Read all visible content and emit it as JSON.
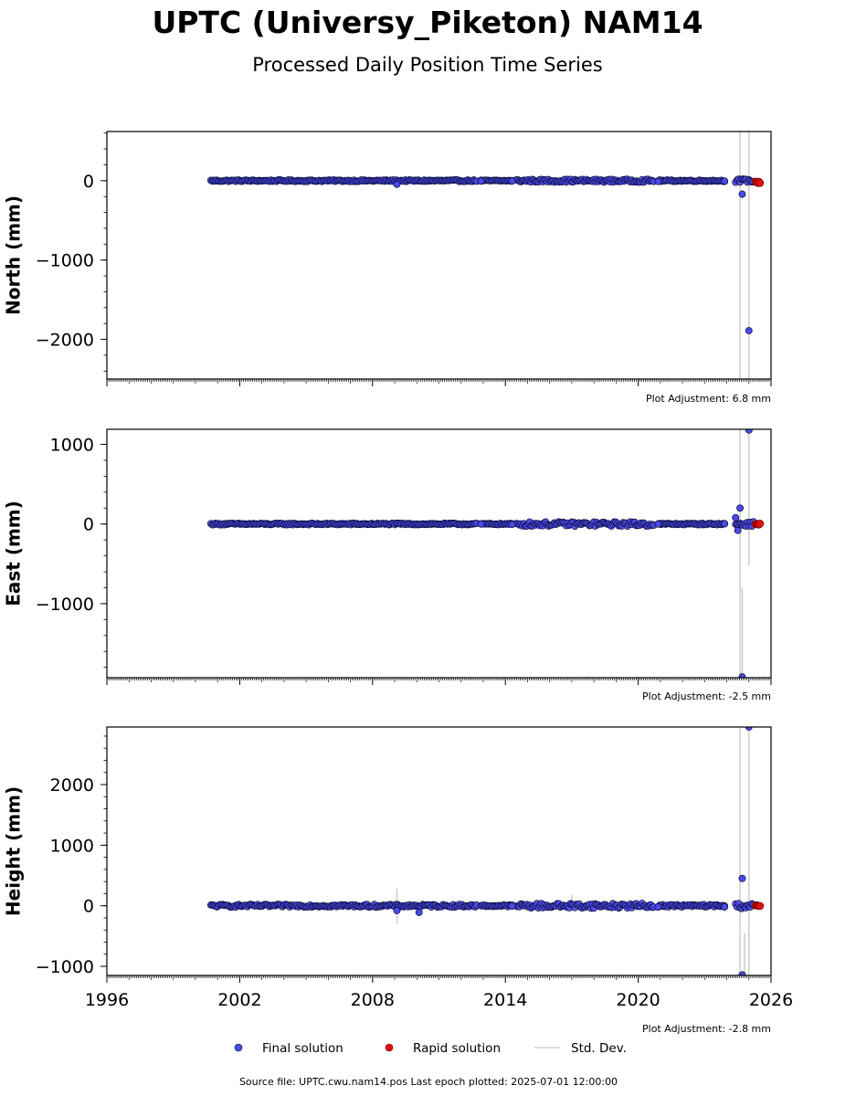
{
  "title": "UPTC (Universy_Piketon) NAM14",
  "subtitle": "Processed Daily Position Time Series",
  "colors": {
    "final": "#4a4ae8",
    "final_edge": "#0b0b3a",
    "rapid": "#e01010",
    "stddev": "#cfcfcf"
  },
  "legend": {
    "final": "Final solution",
    "rapid": "Rapid solution",
    "stddev": "Std. Dev."
  },
  "footer": "Source file: UPTC.cwu.nam14.pos  Last epoch plotted: 2025-07-01 12:00:00",
  "chart_data": [
    {
      "type": "scatter",
      "component": "north",
      "ylabel": "North (mm)",
      "adjustment": "Plot Adjustment: 6.8 mm",
      "xlim": [
        1996,
        2026
      ],
      "ylim": [
        -2500,
        620
      ],
      "yticks": [
        0,
        -1000,
        -2000
      ],
      "ytick_labels": [
        "0",
        "−1000",
        "−2000"
      ],
      "xticks": [
        1996,
        2002,
        2008,
        2014,
        2020,
        2026
      ],
      "xtick_labels": [],
      "final_segments": [
        {
          "start": 2000.7,
          "end": 2012.7,
          "spread": 10
        },
        {
          "start": 2012.9,
          "end": 2014.3,
          "spread": 8
        },
        {
          "start": 2014.5,
          "end": 2020.7,
          "spread": 18
        },
        {
          "start": 2020.9,
          "end": 2023.9,
          "spread": 9
        },
        {
          "start": 2024.4,
          "end": 2025.2,
          "spread": 22
        }
      ],
      "final_outliers": [
        {
          "x": 2009.1,
          "y": -45
        },
        {
          "x": 2012.9,
          "y": -5
        },
        {
          "x": 2014.3,
          "y": -5
        },
        {
          "x": 2020.9,
          "y": -10
        },
        {
          "x": 2023.9,
          "y": -5
        },
        {
          "x": 2024.7,
          "y": -170
        },
        {
          "x": 2025.0,
          "y": -1890
        }
      ],
      "rapid": {
        "start": 2025.3,
        "end": 2025.5,
        "y": -20
      },
      "stddev": [
        {
          "x": 2024.6,
          "ylo": -2500,
          "yhi": 620
        },
        {
          "x": 2025.0,
          "ylo": -2500,
          "yhi": 620
        }
      ]
    },
    {
      "type": "scatter",
      "component": "east",
      "ylabel": "East (mm)",
      "adjustment": "Plot Adjustment: -2.5 mm",
      "xlim": [
        1996,
        2026
      ],
      "ylim": [
        -1930,
        1190
      ],
      "yticks": [
        1000,
        0,
        -1000
      ],
      "ytick_labels": [
        "1000",
        "0",
        "−1000"
      ],
      "xticks": [
        1996,
        2002,
        2008,
        2014,
        2020,
        2026
      ],
      "xtick_labels": [],
      "final_segments": [
        {
          "start": 2000.7,
          "end": 2012.7,
          "spread": 10
        },
        {
          "start": 2012.9,
          "end": 2014.3,
          "spread": 8
        },
        {
          "start": 2014.5,
          "end": 2020.7,
          "spread": 28
        },
        {
          "start": 2020.9,
          "end": 2023.9,
          "spread": 9
        },
        {
          "start": 2024.4,
          "end": 2025.2,
          "spread": 28
        }
      ],
      "final_outliers": [
        {
          "x": 2012.9,
          "y": 0
        },
        {
          "x": 2014.3,
          "y": -5
        },
        {
          "x": 2020.9,
          "y": 0
        },
        {
          "x": 2023.9,
          "y": 5
        },
        {
          "x": 2024.6,
          "y": 200
        },
        {
          "x": 2024.4,
          "y": 80
        },
        {
          "x": 2024.5,
          "y": -80
        },
        {
          "x": 2025.0,
          "y": 1180
        },
        {
          "x": 2024.7,
          "y": -1920
        }
      ],
      "rapid": {
        "start": 2025.3,
        "end": 2025.5,
        "y": 0
      },
      "stddev": [
        {
          "x": 2024.6,
          "ylo": -1930,
          "yhi": 1190
        },
        {
          "x": 2025.0,
          "ylo": -520,
          "yhi": 1190
        },
        {
          "x": 2024.7,
          "ylo": -1930,
          "yhi": -800
        }
      ]
    },
    {
      "type": "scatter",
      "component": "height",
      "ylabel": "Height (mm)",
      "adjustment": "Plot Adjustment: -2.8 mm",
      "xlim": [
        1996,
        2026
      ],
      "ylim": [
        -1150,
        2950
      ],
      "yticks": [
        2000,
        1000,
        0,
        -1000
      ],
      "ytick_labels": [
        "2000",
        "1000",
        "0",
        "−1000"
      ],
      "xticks": [
        1996,
        2002,
        2008,
        2014,
        2020,
        2026
      ],
      "xtick_labels": [
        "1996",
        "2002",
        "2008",
        "2014",
        "2020",
        "2026"
      ],
      "final_segments": [
        {
          "start": 2000.7,
          "end": 2012.7,
          "spread": 22
        },
        {
          "start": 2012.9,
          "end": 2014.3,
          "spread": 15
        },
        {
          "start": 2014.5,
          "end": 2020.7,
          "spread": 40
        },
        {
          "start": 2020.9,
          "end": 2023.9,
          "spread": 20
        },
        {
          "start": 2024.4,
          "end": 2025.2,
          "spread": 45
        }
      ],
      "final_outliers": [
        {
          "x": 2009.1,
          "y": -80
        },
        {
          "x": 2010.1,
          "y": -110
        },
        {
          "x": 2014.3,
          "y": -5
        },
        {
          "x": 2020.9,
          "y": -20
        },
        {
          "x": 2023.9,
          "y": -20
        },
        {
          "x": 2024.7,
          "y": 450
        },
        {
          "x": 2025.0,
          "y": 2950
        },
        {
          "x": 2024.7,
          "y": -1140
        }
      ],
      "rapid": {
        "start": 2025.3,
        "end": 2025.5,
        "y": 0
      },
      "stddev": [
        {
          "x": 2009.1,
          "ylo": -300,
          "yhi": 280
        },
        {
          "x": 2017.0,
          "ylo": -100,
          "yhi": 180
        },
        {
          "x": 2024.6,
          "ylo": -1150,
          "yhi": 2950
        },
        {
          "x": 2025.0,
          "ylo": -1150,
          "yhi": 2950
        },
        {
          "x": 2024.8,
          "ylo": -1150,
          "yhi": -450
        }
      ]
    }
  ]
}
